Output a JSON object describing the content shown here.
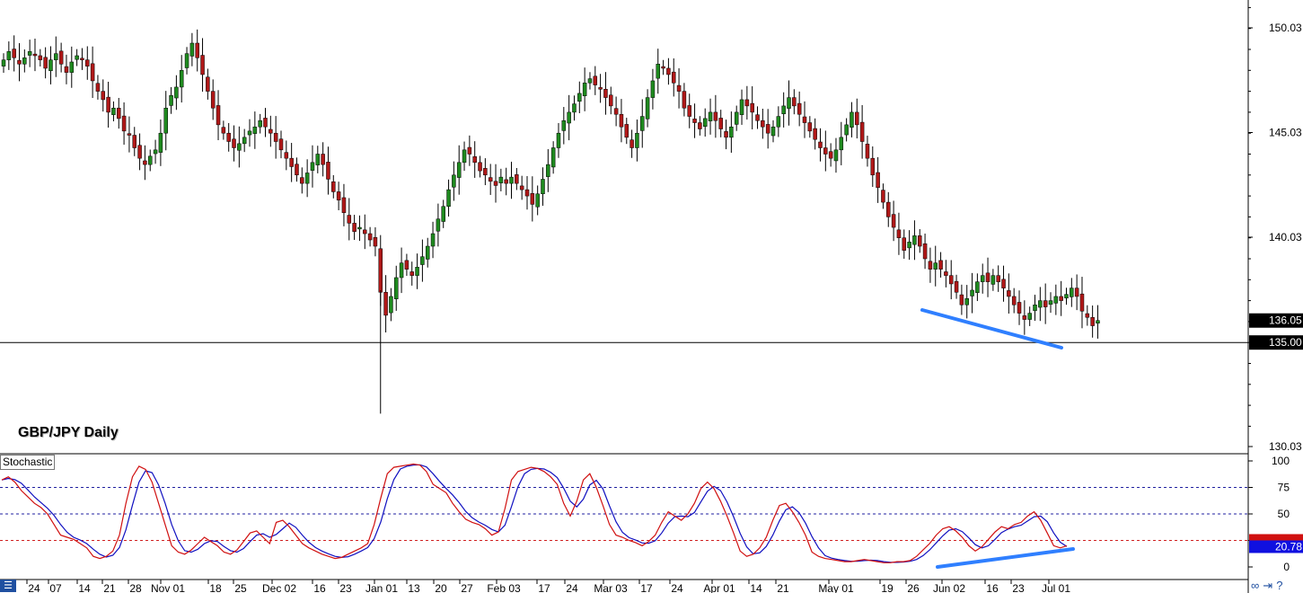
{
  "title": "GBP/JPY Daily",
  "indicator_label": "Stochastic",
  "colors": {
    "bull": "#1f8a1f",
    "bear": "#b01818",
    "wick": "#000000",
    "k_line": "#d01010",
    "d_line": "#1010c0",
    "trend": "#2f7fff",
    "ob_level": "#2020a0",
    "os_level": "#d02020"
  },
  "price_axis": {
    "ticks": [
      "150.03",
      "145.03",
      "140.03",
      "130.03"
    ],
    "tick_values": [
      150.03,
      145.03,
      140.03,
      130.03
    ],
    "current_price_label": "136.05",
    "current_price": 136.05,
    "hline_label": "135.00",
    "hline_value": 135.0
  },
  "stoch_axis": {
    "ticks": [
      "100",
      "75",
      "50",
      "25",
      "0"
    ],
    "tick_values": [
      100,
      75,
      50,
      25,
      0
    ],
    "current_label": "20.78",
    "current_value": 20.78
  },
  "date_labels": [
    "24",
    "07",
    "14",
    "21",
    "28",
    "Nov 01",
    "18",
    "25",
    "Dec 02",
    "16",
    "23",
    "Jan 01",
    "13",
    "20",
    "27",
    "Feb 03",
    "17",
    "24",
    "Mar 03",
    "17",
    "24",
    "Apr 01",
    "14",
    "21",
    "May 01",
    "19",
    "26",
    "Jun 02",
    "16",
    "23",
    "Jul 01"
  ],
  "chart_data": {
    "type": "candlestick",
    "title": "GBP/JPY Daily",
    "ylim": [
      130.0,
      152.0
    ],
    "series": [
      {
        "name": "GBP/JPY",
        "close": [
          148.5,
          148.9,
          148.6,
          148.3,
          148.6,
          148.9,
          148.7,
          148.5,
          148.1,
          148.5,
          148.8,
          148.3,
          147.9,
          148.4,
          148.7,
          148.5,
          148.2,
          147.5,
          147.0,
          146.6,
          146.0,
          146.2,
          145.7,
          145.1,
          144.9,
          144.3,
          143.8,
          143.5,
          143.9,
          144.2,
          145.0,
          146.2,
          146.8,
          147.2,
          148.0,
          148.8,
          149.3,
          148.6,
          147.8,
          147.0,
          146.2,
          145.4,
          145.0,
          144.6,
          144.3,
          144.5,
          144.8,
          145.1,
          145.3,
          145.6,
          145.3,
          145.0,
          144.6,
          144.2,
          143.8,
          143.4,
          143.0,
          142.6,
          143.1,
          143.6,
          144.0,
          143.5,
          142.8,
          142.2,
          141.8,
          141.2,
          140.7,
          140.3,
          140.5,
          140.2,
          139.9,
          139.6,
          137.4,
          136.3,
          137.2,
          138.1,
          138.8,
          138.5,
          138.2,
          138.6,
          139.1,
          139.6,
          140.2,
          140.9,
          141.5,
          142.3,
          143.0,
          143.6,
          144.2,
          144.0,
          143.6,
          143.2,
          143.0,
          142.7,
          142.5,
          142.9,
          142.6,
          142.9,
          142.6,
          142.3,
          142.0,
          141.6,
          142.1,
          142.8,
          143.5,
          144.3,
          145.0,
          145.6,
          146.0,
          146.4,
          146.9,
          147.4,
          147.6,
          147.3,
          147.1,
          146.7,
          146.3,
          145.9,
          145.3,
          144.8,
          144.3,
          145.0,
          145.8,
          146.7,
          147.5,
          148.3,
          148.1,
          147.8,
          147.4,
          147.0,
          146.2,
          145.8,
          145.5,
          145.2,
          145.7,
          146.0,
          145.6,
          145.2,
          144.8,
          145.3,
          146.0,
          146.6,
          146.3,
          146.0,
          145.6,
          145.3,
          145.0,
          145.3,
          145.8,
          146.3,
          146.7,
          146.3,
          145.9,
          145.5,
          145.1,
          144.7,
          144.3,
          144.0,
          143.8,
          144.2,
          144.8,
          145.4,
          146.0,
          145.4,
          144.6,
          143.8,
          143.0,
          142.4,
          141.7,
          141.0,
          140.5,
          140.0,
          139.4,
          139.8,
          140.1,
          139.6,
          139.0,
          138.5,
          138.8,
          138.5,
          138.2,
          137.8,
          137.4,
          136.8,
          137.1,
          137.5,
          137.9,
          138.2,
          137.9,
          138.2,
          137.9,
          137.6,
          137.2,
          136.8,
          136.4,
          136.1,
          136.4,
          136.8,
          137.0,
          136.7,
          137.0,
          137.2,
          137.0,
          137.3,
          137.6,
          137.2,
          136.5,
          136.2,
          135.8,
          136.05
        ]
      }
    ],
    "annotations": [
      "135.00"
    ],
    "stochastic": {
      "name": "Stochastic",
      "ylim": [
        0,
        100
      ],
      "levels": [
        75,
        50,
        25
      ],
      "k": [
        82,
        85,
        80,
        72,
        66,
        60,
        56,
        50,
        40,
        30,
        28,
        26,
        22,
        18,
        10,
        8,
        10,
        15,
        30,
        60,
        85,
        95,
        92,
        80,
        60,
        40,
        20,
        14,
        12,
        16,
        22,
        28,
        24,
        20,
        14,
        12,
        16,
        24,
        32,
        34,
        28,
        22,
        42,
        44,
        38,
        30,
        22,
        18,
        15,
        12,
        10,
        8,
        9,
        12,
        15,
        18,
        22,
        40,
        65,
        88,
        94,
        95,
        96,
        97,
        96,
        90,
        78,
        74,
        70,
        60,
        52,
        45,
        42,
        40,
        36,
        30,
        33,
        55,
        82,
        90,
        92,
        94,
        93,
        90,
        85,
        78,
        60,
        48,
        62,
        82,
        88,
        75,
        58,
        40,
        30,
        28,
        25,
        23,
        20,
        24,
        30,
        42,
        52,
        48,
        44,
        50,
        60,
        74,
        80,
        74,
        62,
        48,
        32,
        15,
        10,
        12,
        18,
        28,
        44,
        58,
        60,
        52,
        42,
        30,
        14,
        10,
        8,
        7,
        6,
        5,
        5,
        6,
        7,
        6,
        5,
        4,
        4,
        5,
        5,
        6,
        10,
        16,
        22,
        30,
        36,
        38,
        34,
        28,
        20,
        15,
        19,
        26,
        33,
        38,
        36,
        40,
        42,
        48,
        52,
        44,
        32,
        20,
        18,
        20
      ]
    }
  }
}
